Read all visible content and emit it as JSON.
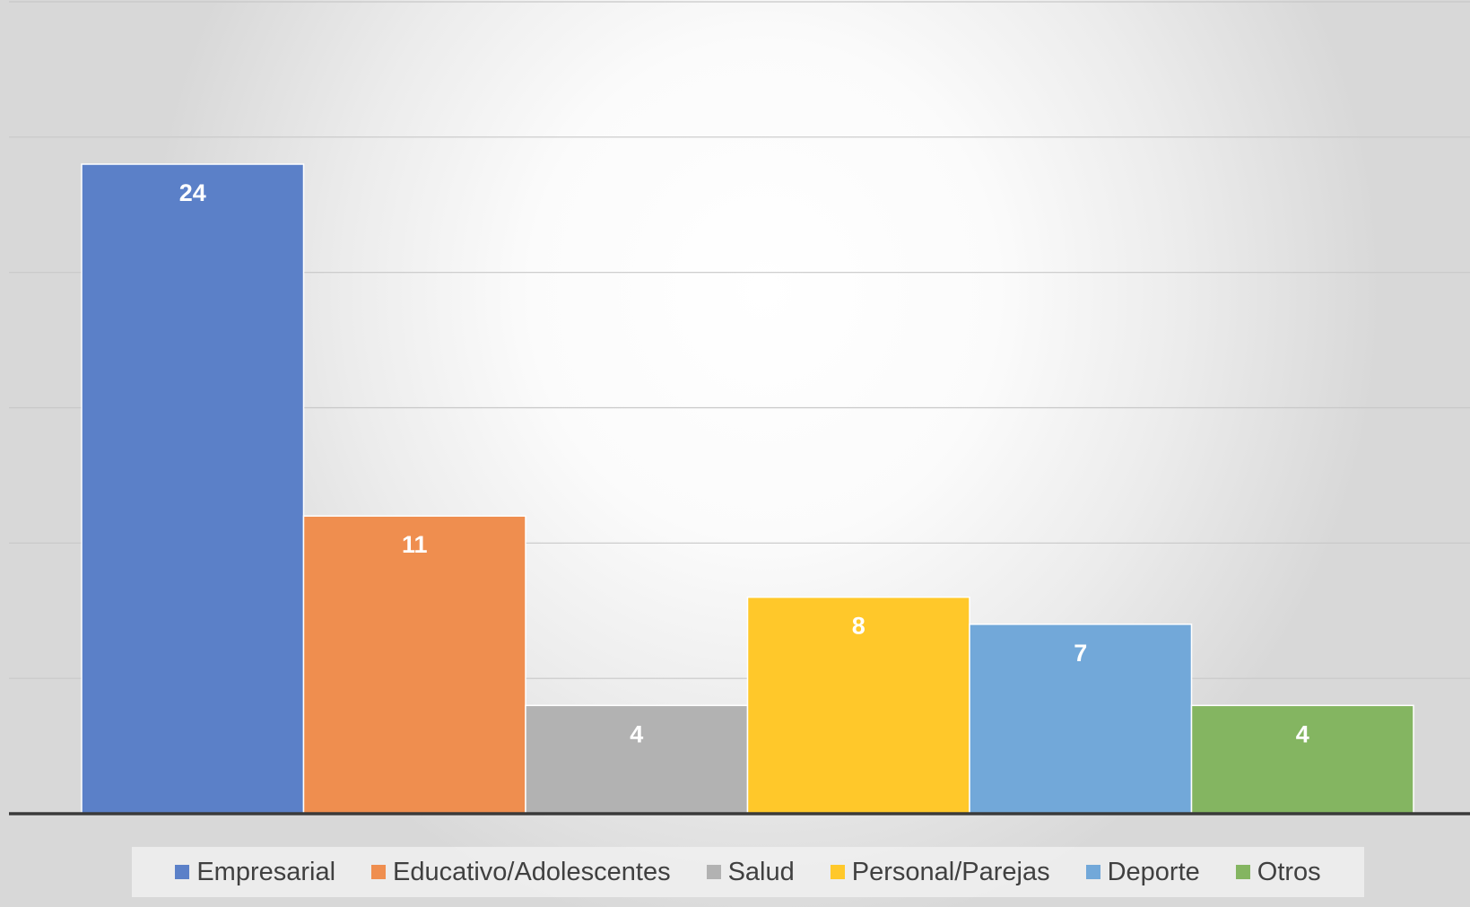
{
  "chart_data": {
    "type": "bar",
    "categories": [
      "Empresarial",
      "Educativo/Adolescentes",
      "Salud",
      "Personal/Parejas",
      "Deporte",
      "Otros"
    ],
    "values": [
      24,
      11,
      4,
      8,
      7,
      4
    ],
    "colors": [
      "#5b80c8",
      "#ef8e4f",
      "#b2b2b2",
      "#ffc82a",
      "#72a8d9",
      "#84b561"
    ],
    "ylim": [
      0,
      30
    ],
    "grid": true,
    "data_labels": true,
    "title": "",
    "xlabel": "",
    "ylabel": "",
    "legend_position": "bottom"
  }
}
